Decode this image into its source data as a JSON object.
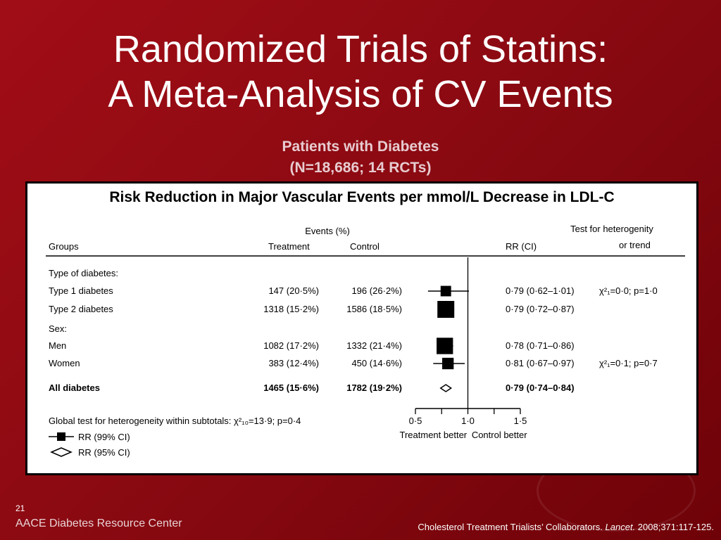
{
  "slide": {
    "title_line1": "Randomized Trials of Statins:",
    "title_line2": "A Meta-Analysis of CV Events",
    "subtitle_line1": "Patients with Diabetes",
    "subtitle_line2": "(N=18,686; 14 RCTs)",
    "panel_title": "Risk Reduction in Major Vascular Events per mmol/L Decrease in LDL-C",
    "slide_number": "21",
    "footer_left": "AACE Diabetes Resource Center",
    "citation_pre": "Cholesterol Treatment Trialists’ Collaborators. ",
    "citation_journal": "Lancet.",
    "citation_post": " 2008;371:117-125."
  },
  "table": {
    "header_events": "Events (%)",
    "col_groups": "Groups",
    "col_treatment": "Treatment",
    "col_control": "Control",
    "col_rr": "RR (CI)",
    "col_het1": "Test for heterogenity",
    "col_het2": "or trend",
    "section_type": "Type of diabetes:",
    "section_sex": "Sex:",
    "global_test": "Global test for heterogeneity within subtotals: χ²₁₀=13·9; p=0·4",
    "legend_square": "RR (99% CI)",
    "legend_diamond": "RR (95% CI)",
    "axis_left_label": "Treatment better",
    "axis_right_label": "Control better"
  },
  "chart_data": {
    "type": "forest",
    "xlim": [
      0.5,
      1.5
    ],
    "x_ticks": [
      "0·5",
      "1·0",
      "1·5"
    ],
    "tick_values": [
      0.5,
      1.0,
      1.5
    ],
    "minor_ticks": [
      0.75,
      1.25
    ],
    "reference_line": 1.0,
    "rows": [
      {
        "group": "Type 1 diabetes",
        "treatment": "147 (20·5%)",
        "control": "196 (26·2%)",
        "rr_text": "0·79 (0·62–1·01)",
        "rr": 0.79,
        "lo": 0.62,
        "hi": 1.01,
        "het": "χ²₁=0·0; p=1·0",
        "marker": "square",
        "weight": 0.35
      },
      {
        "group": "Type 2 diabetes",
        "treatment": "1318 (15·2%)",
        "control": "1586 (18·5%)",
        "rr_text": "0·79 (0·72–0·87)",
        "rr": 0.79,
        "lo": 0.72,
        "hi": 0.87,
        "het": "",
        "marker": "square",
        "weight": 1.0
      },
      {
        "group": "Men",
        "treatment": "1082 (17·2%)",
        "control": "1332 (21·4%)",
        "rr_text": "0·78 (0·71–0·86)",
        "rr": 0.78,
        "lo": 0.71,
        "hi": 0.86,
        "het": "",
        "marker": "square",
        "weight": 0.95
      },
      {
        "group": "Women",
        "treatment": "383 (12·4%)",
        "control": "450 (14·6%)",
        "rr_text": "0·81 (0·67–0·97)",
        "rr": 0.81,
        "lo": 0.67,
        "hi": 0.97,
        "het": "χ²₁=0·1; p=0·7",
        "marker": "square",
        "weight": 0.45
      },
      {
        "group": "All diabetes",
        "treatment": "1465 (15·6%)",
        "control": "1782 (19·2%)",
        "rr_text": "0·79 (0·74–0·84)",
        "rr": 0.79,
        "lo": 0.74,
        "hi": 0.84,
        "het": "",
        "marker": "diamond",
        "weight": 1.0
      }
    ]
  }
}
